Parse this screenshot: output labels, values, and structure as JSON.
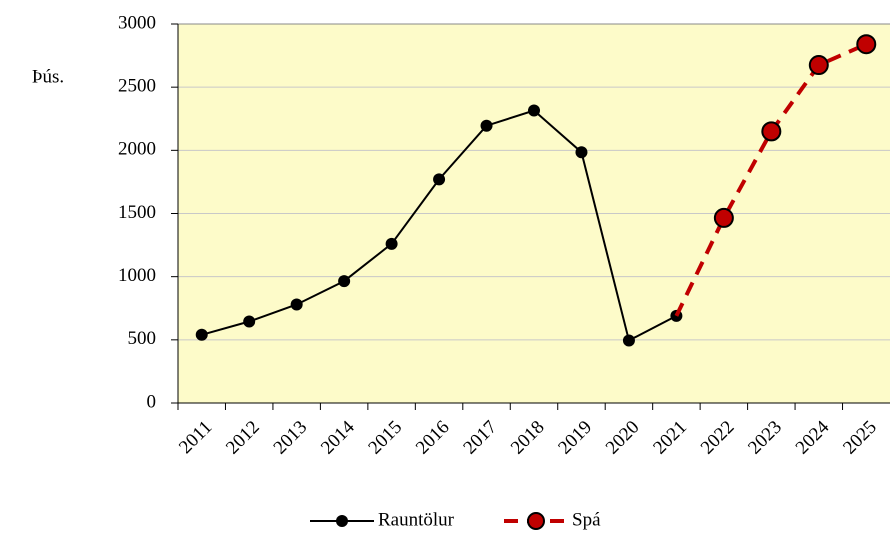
{
  "chart_data": {
    "type": "line",
    "y_label": "Þús.",
    "categories": [
      "2011",
      "2012",
      "2013",
      "2014",
      "2015",
      "2016",
      "2017",
      "2018",
      "2019",
      "2020",
      "2021",
      "2022",
      "2023",
      "2024",
      "2025"
    ],
    "series": [
      {
        "name": "Rauntölur",
        "color": "#000000",
        "dashed": false,
        "values": [
          540,
          645,
          780,
          965,
          1260,
          1770,
          2195,
          2315,
          1985,
          495,
          690,
          null,
          null,
          null,
          null
        ]
      },
      {
        "name": "Spá",
        "color": "#c00000",
        "dashed": true,
        "values": [
          null,
          null,
          null,
          null,
          null,
          null,
          null,
          null,
          null,
          null,
          690,
          1465,
          2150,
          2675,
          2840
        ]
      }
    ],
    "ylim": [
      0,
      3000
    ],
    "yticks": [
      0,
      500,
      1000,
      1500,
      2000,
      2500,
      3000
    ],
    "grid": true,
    "legend": "bottom"
  }
}
